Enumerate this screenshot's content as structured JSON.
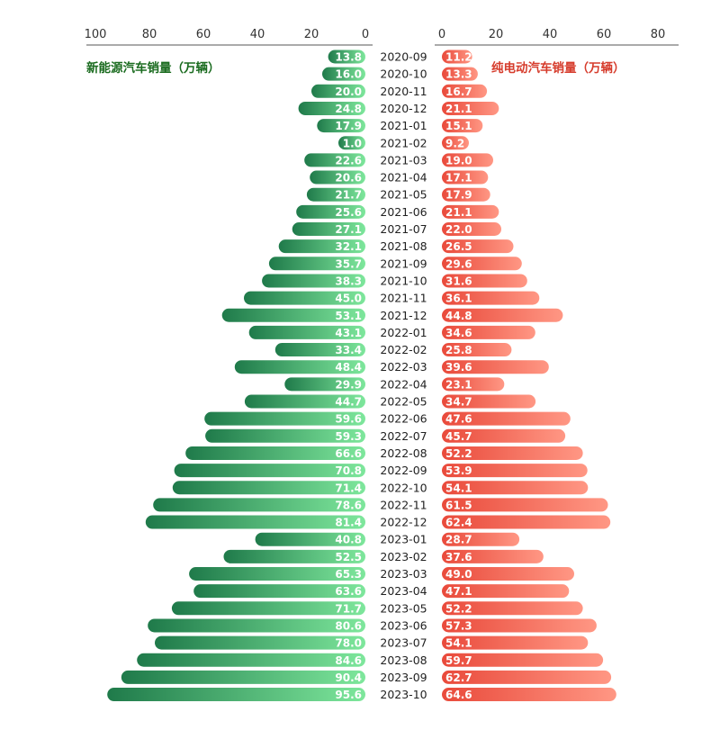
{
  "chart_data": {
    "type": "bar",
    "orientation": "horizontal-butterfly",
    "title": "",
    "categories": [
      "2020-09",
      "2020-10",
      "2020-11",
      "2020-12",
      "2021-01",
      "2021-02",
      "2021-03",
      "2021-04",
      "2021-05",
      "2021-06",
      "2021-07",
      "2021-08",
      "2021-09",
      "2021-10",
      "2021-11",
      "2021-12",
      "2022-01",
      "2022-02",
      "2022-03",
      "2022-04",
      "2022-05",
      "2022-06",
      "2022-07",
      "2022-08",
      "2022-09",
      "2022-10",
      "2022-11",
      "2022-12",
      "2023-01",
      "2023-02",
      "2023-03",
      "2023-04",
      "2023-05",
      "2023-06",
      "2023-07",
      "2023-08",
      "2023-09",
      "2023-10"
    ],
    "series": [
      {
        "name": "新能源汽车销量（万辆）",
        "side": "left",
        "color": "#3dbb6e",
        "values": [
          13.8,
          16.0,
          20.0,
          24.8,
          17.9,
          1.0,
          22.6,
          20.6,
          21.7,
          25.6,
          27.1,
          32.1,
          35.7,
          38.3,
          45.0,
          53.1,
          43.1,
          33.4,
          48.4,
          29.9,
          44.7,
          59.6,
          59.3,
          66.6,
          70.8,
          71.4,
          78.6,
          81.4,
          40.8,
          52.5,
          65.3,
          63.6,
          71.7,
          80.6,
          78.0,
          84.6,
          90.4,
          95.6
        ],
        "labels": [
          "13.8",
          "16.0",
          "20.0",
          "24.8",
          "17.9",
          "1.0",
          "22.6",
          "20.6",
          "21.7",
          "25.6",
          "27.1",
          "32.1",
          "35.7",
          "38.3",
          "45.0",
          "53.1",
          "43.1",
          "33.4",
          "48.4",
          "29.9",
          "44.7",
          "59.6",
          "59.3",
          "66.6",
          "70.8",
          "71.4",
          "78.6",
          "81.4",
          "40.8",
          "52.5",
          "65.3",
          "63.6",
          "71.7",
          "80.6",
          "78.0",
          "84.6",
          "90.4",
          "95.6"
        ]
      },
      {
        "name": "纯电动汽车销量（万辆）",
        "side": "right",
        "color": "#f06a55",
        "values": [
          11.2,
          13.3,
          16.7,
          21.1,
          15.1,
          9.2,
          19.0,
          17.1,
          17.9,
          21.1,
          22.0,
          26.5,
          29.6,
          31.6,
          36.1,
          44.8,
          34.6,
          25.8,
          39.6,
          23.1,
          34.7,
          47.6,
          45.7,
          52.2,
          53.9,
          54.1,
          61.5,
          62.4,
          28.7,
          37.6,
          49.0,
          47.1,
          52.2,
          57.3,
          54.1,
          59.7,
          62.7,
          64.6
        ],
        "labels": [
          "11.2",
          "13.3",
          "16.7",
          "21.1",
          "15.1",
          "9.2",
          "19.0",
          "17.1",
          "17.9",
          "21.1",
          "22.0",
          "26.5",
          "29.6",
          "31.6",
          "36.1",
          "44.8",
          "34.6",
          "25.8",
          "39.6",
          "23.1",
          "34.7",
          "47.6",
          "45.7",
          "52.2",
          "53.9",
          "54.1",
          "61.5",
          "62.4",
          "28.7",
          "37.6",
          "49.0",
          "47.1",
          "52.2",
          "57.3",
          "54.1",
          "59.7",
          "62.7",
          "64.6"
        ]
      }
    ],
    "left_axis": {
      "range": [
        0,
        100
      ],
      "ticks": [
        "100",
        "80",
        "60",
        "40",
        "20",
        "0"
      ],
      "tick_values": [
        100,
        80,
        60,
        40,
        20,
        0
      ]
    },
    "right_axis": {
      "range": [
        0,
        80
      ],
      "ticks": [
        "0",
        "20",
        "40",
        "60",
        "80"
      ],
      "tick_values": [
        0,
        20,
        40,
        60,
        80
      ]
    },
    "legend": {
      "left": "新能源汽车销量（万辆）",
      "right": "纯电动汽车销量（万辆）",
      "placement": "top"
    },
    "grid": false
  }
}
